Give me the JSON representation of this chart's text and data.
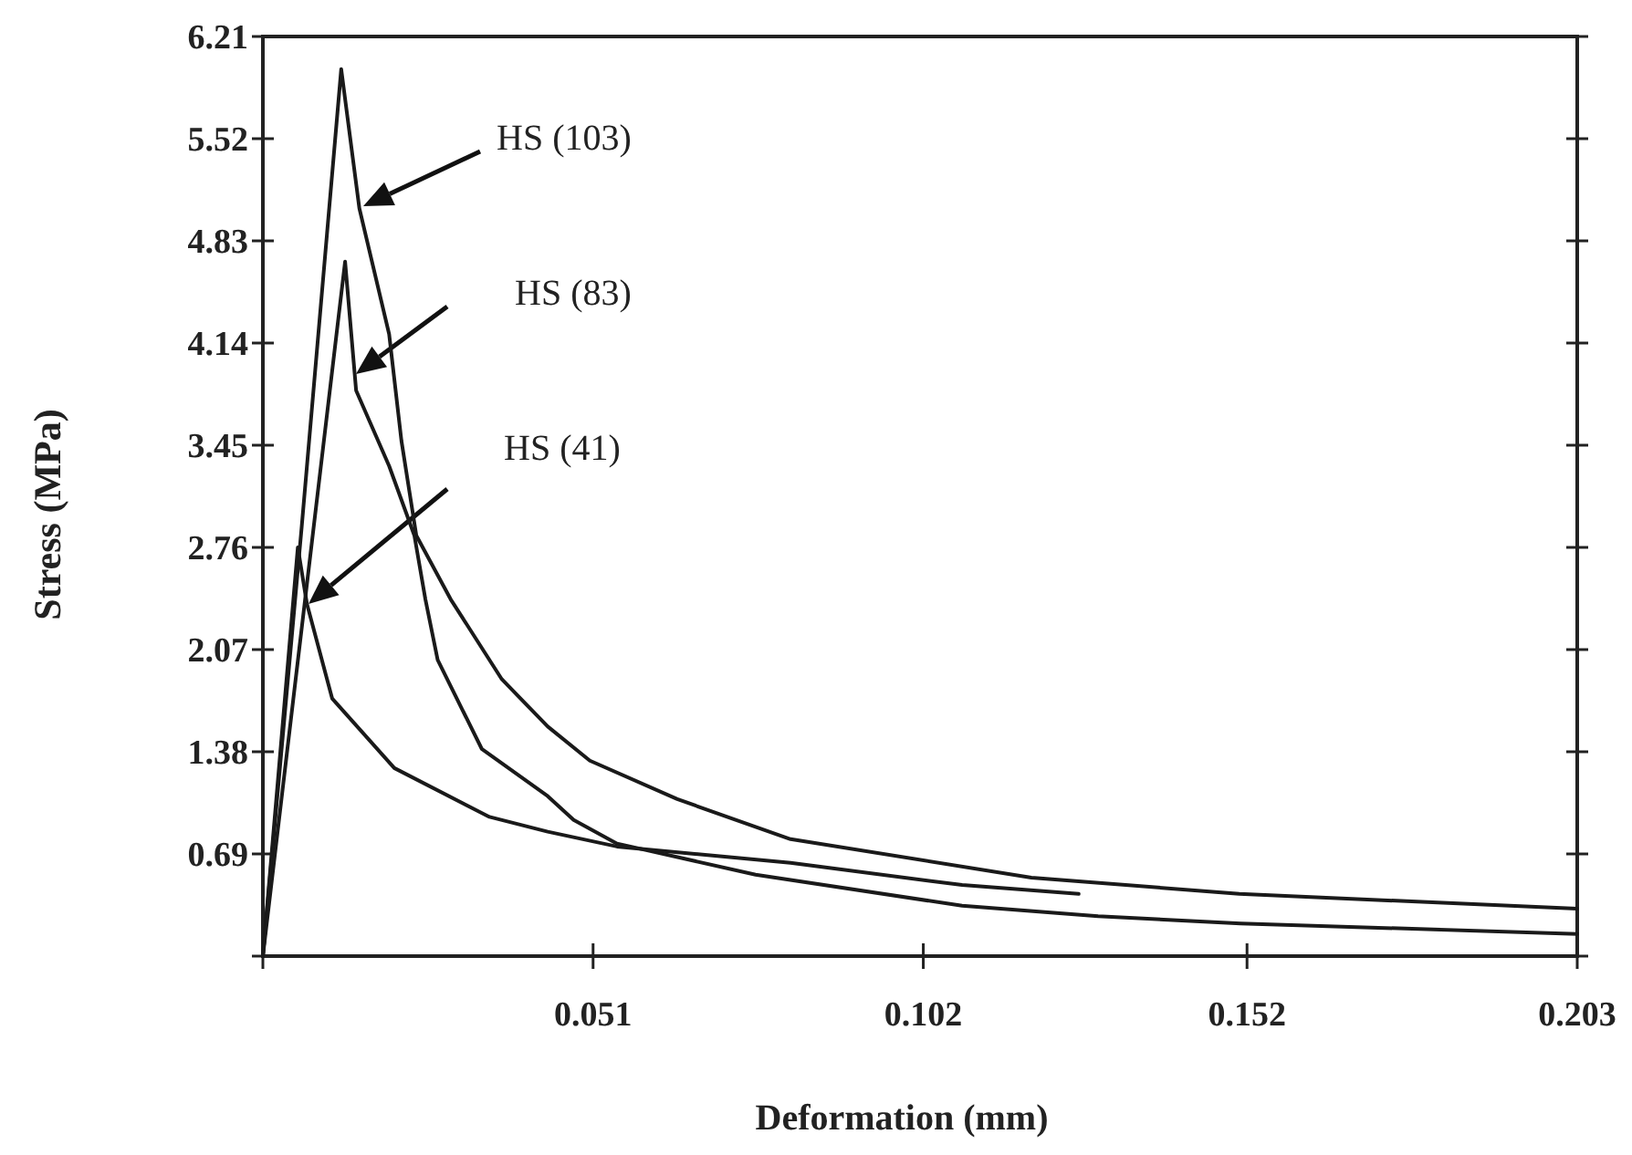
{
  "chart_data": {
    "type": "line",
    "xlabel": "Deformation (mm)",
    "ylabel": "Stress (MPa)",
    "xlim": [
      0,
      0.203
    ],
    "xticks": [
      {
        "value": 0,
        "label": null
      },
      0.051,
      0.102,
      0.152,
      0.203
    ],
    "ylim": [
      0,
      6.21
    ],
    "yticks": [
      {
        "value": 0,
        "label": null
      },
      0.69,
      1.38,
      2.07,
      2.76,
      3.45,
      4.14,
      4.83,
      5.52,
      6.21
    ],
    "grid": false,
    "line_style": "solid",
    "series": [
      {
        "color": "#1a1a1a",
        "x": [
          0,
          0.006,
          0.0121,
          0.0149,
          0.0195,
          0.0214,
          0.0237,
          0.029,
          0.0369,
          0.044,
          0.0505,
          0.064,
          0.0815,
          0.1187,
          0.1508,
          0.203
        ],
        "values": [
          0,
          2.9,
          5.99,
          5.05,
          4.2,
          3.48,
          2.84,
          2.41,
          1.87,
          1.55,
          1.32,
          1.06,
          0.79,
          0.53,
          0.42,
          0.32
        ]
      },
      {
        "color": "#1a1a1a",
        "x": [
          0,
          0.0065,
          0.0127,
          0.0144,
          0.0195,
          0.0234,
          0.0251,
          0.027,
          0.0338,
          0.044,
          0.048,
          0.0547,
          0.0761,
          0.108,
          0.129,
          0.151,
          0.203
        ],
        "values": [
          0,
          2.4,
          4.69,
          3.82,
          3.31,
          2.84,
          2.41,
          2.0,
          1.4,
          1.08,
          0.92,
          0.76,
          0.55,
          0.34,
          0.27,
          0.22,
          0.15
        ]
      },
      {
        "color": "#1a1a1a",
        "x": [
          0,
          0.0054,
          0.0068,
          0.0107,
          0.0203,
          0.035,
          0.044,
          0.0547,
          0.0815,
          0.108,
          0.126
        ],
        "values": [
          0,
          2.76,
          2.38,
          1.74,
          1.27,
          0.94,
          0.84,
          0.74,
          0.63,
          0.48,
          0.42
        ]
      }
    ],
    "annotations": [
      "HS (103)",
      "HS (83)",
      "HS (41)"
    ]
  }
}
